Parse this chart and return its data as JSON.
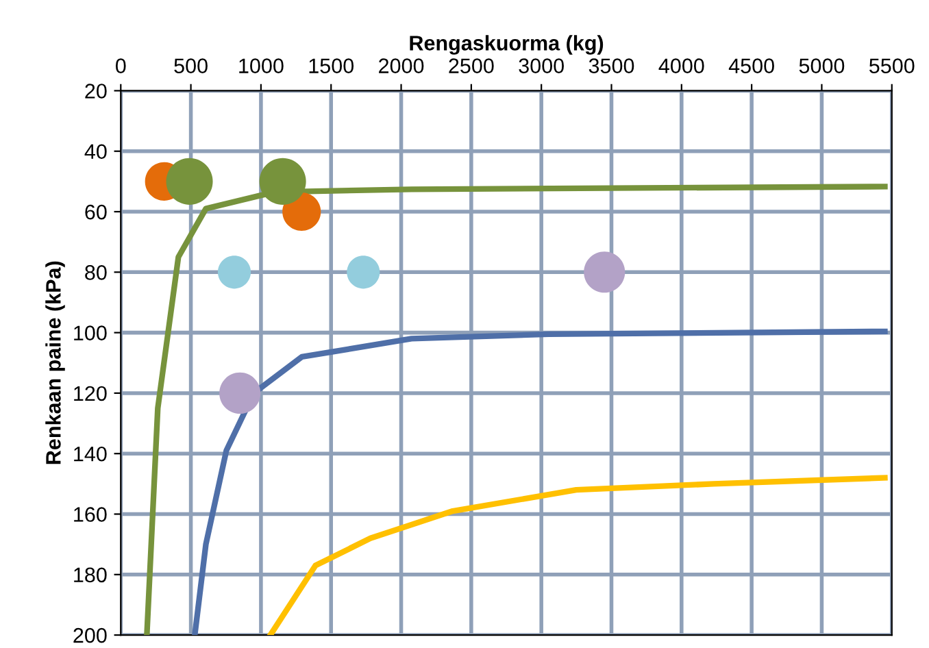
{
  "chart_data": {
    "type": "line",
    "xlabel": "Rengaskuorma (kg)",
    "ylabel": "Renkaan paine (kPa)",
    "xlim": [
      0,
      5500
    ],
    "xticks": [
      0,
      500,
      1000,
      1500,
      2000,
      2500,
      3000,
      3500,
      4000,
      4500,
      5000,
      5500
    ],
    "ylim": [
      200,
      20
    ],
    "yticks": [
      20,
      40,
      60,
      80,
      100,
      120,
      140,
      160,
      180,
      200
    ],
    "grid": true,
    "legend": false,
    "line_style": "solid",
    "series": [
      {
        "color": "#77933c",
        "marker": "none",
        "x": [
          186,
          264,
          411,
          607,
          1096,
          2074,
          5450
        ],
        "values": [
          200,
          125,
          75,
          59,
          53.5,
          52.6,
          51.7
        ]
      },
      {
        "color": "#4f6fa8",
        "marker": "none",
        "x": [
          528,
          607,
          753,
          949,
          1292,
          2074,
          3053,
          5450
        ],
        "values": [
          200,
          170,
          139,
          120,
          108,
          102,
          100.5,
          99.6
        ]
      },
      {
        "color": "#ffc000",
        "marker": "none",
        "x": [
          1067,
          1389,
          1781,
          2368,
          3249,
          4227,
          5450
        ],
        "values": [
          200,
          177,
          168,
          159,
          152,
          150,
          148
        ]
      },
      {
        "type": "bubble",
        "marker": "circle",
        "color": "#e46c0a",
        "x": [
          310,
          1290
        ],
        "values": [
          50,
          60
        ],
        "sizes": [
          0.68,
          0.68
        ]
      },
      {
        "type": "bubble",
        "marker": "circle",
        "color": "#77933c",
        "x": [
          490,
          1155
        ],
        "values": [
          50,
          50
        ],
        "sizes": [
          1,
          1
        ]
      },
      {
        "type": "bubble",
        "marker": "circle",
        "color": "#93cddd",
        "x": [
          810,
          1730
        ],
        "values": [
          80,
          80
        ],
        "sizes": [
          0.5,
          0.5
        ]
      },
      {
        "type": "bubble",
        "marker": "circle",
        "color": "#b3a2c7",
        "x": [
          3450,
          850
        ],
        "values": [
          80,
          120
        ],
        "sizes": [
          0.78,
          0.78
        ]
      }
    ]
  }
}
